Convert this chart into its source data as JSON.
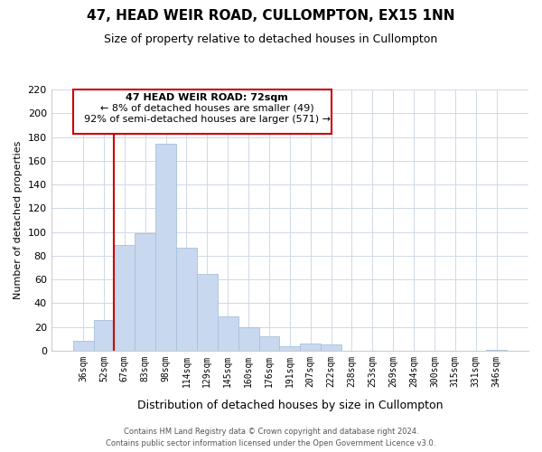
{
  "title": "47, HEAD WEIR ROAD, CULLOMPTON, EX15 1NN",
  "subtitle": "Size of property relative to detached houses in Cullompton",
  "xlabel": "Distribution of detached houses by size in Cullompton",
  "ylabel": "Number of detached properties",
  "bar_labels": [
    "36sqm",
    "52sqm",
    "67sqm",
    "83sqm",
    "98sqm",
    "114sqm",
    "129sqm",
    "145sqm",
    "160sqm",
    "176sqm",
    "191sqm",
    "207sqm",
    "222sqm",
    "238sqm",
    "253sqm",
    "269sqm",
    "284sqm",
    "300sqm",
    "315sqm",
    "331sqm",
    "346sqm"
  ],
  "bar_heights": [
    8,
    26,
    89,
    99,
    174,
    87,
    65,
    29,
    20,
    12,
    4,
    6,
    5,
    0,
    0,
    0,
    0,
    0,
    0,
    0,
    1
  ],
  "bar_color": "#c8d8ee",
  "bar_edge_color": "#a8c0dc",
  "ylim": [
    0,
    220
  ],
  "yticks": [
    0,
    20,
    40,
    60,
    80,
    100,
    120,
    140,
    160,
    180,
    200,
    220
  ],
  "subject_line_index": 2,
  "subject_line_color": "#cc0000",
  "annotation_title": "47 HEAD WEIR ROAD: 72sqm",
  "annotation_line1": "← 8% of detached houses are smaller (49)",
  "annotation_line2": "92% of semi-detached houses are larger (571) →",
  "footer_line1": "Contains HM Land Registry data © Crown copyright and database right 2024.",
  "footer_line2": "Contains public sector information licensed under the Open Government Licence v3.0.",
  "background_color": "#ffffff",
  "grid_color": "#d0d8e8"
}
